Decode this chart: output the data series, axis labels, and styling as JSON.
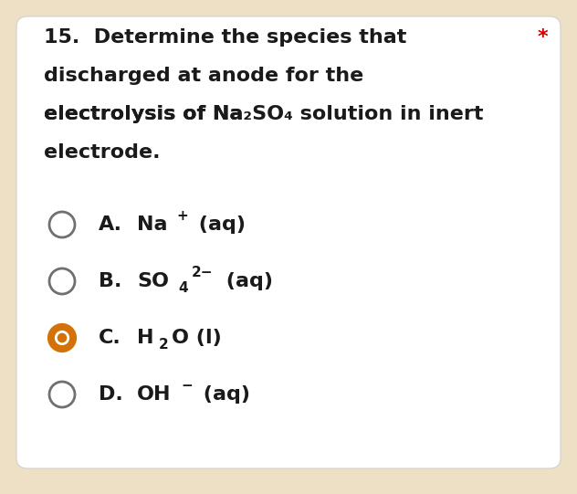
{
  "background_outer": "#ede0c4",
  "background_card": "#ffffff",
  "question_number": "15.",
  "question_lines": [
    "15.  Determine the species that",
    "discharged at anode for the",
    "electrolysis of Na₂SO₄ solution in inert",
    "electrode."
  ],
  "asterisk": "*",
  "asterisk_color": "#cc0000",
  "options": [
    {
      "letter": "A.",
      "label": "Na",
      "sup": "+",
      "sub": "",
      "sup2": "",
      "after_sub": "",
      "tail": " (aq)",
      "selected": false
    },
    {
      "letter": "B.",
      "label": "SO",
      "sup": "2−",
      "sub": "4",
      "sup2": "",
      "after_sub": "",
      "tail": " (aq)",
      "selected": false
    },
    {
      "letter": "C.",
      "label": "H",
      "sup": "",
      "sub": "2",
      "sup2": "",
      "after_sub": "O (l)",
      "tail": "",
      "selected": true
    },
    {
      "letter": "D.",
      "label": "OH",
      "sup": "−",
      "sub": "",
      "sup2": "",
      "after_sub": "",
      "tail": " (aq)",
      "selected": false
    }
  ],
  "font_size_q": 16,
  "font_size_opt": 16,
  "font_size_small": 11,
  "circle_color_empty": "#707070",
  "circle_color_selected": "#d4720a",
  "text_color": "#1a1a1a"
}
